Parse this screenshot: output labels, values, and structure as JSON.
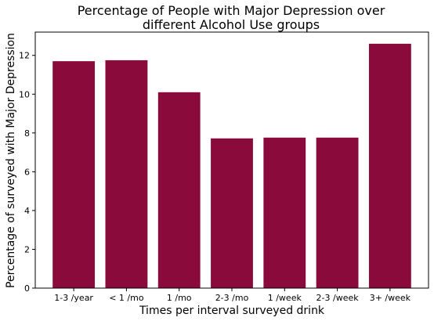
{
  "chart_data": {
    "type": "bar",
    "title_lines": [
      "Percentage of People with Major Depression over",
      "different Alcohol Use groups"
    ],
    "xlabel": "Times per interval surveyed drink",
    "ylabel": "Percentage of surveyed with Major Depression",
    "categories": [
      "1-3 /year",
      "< 1 /mo",
      "1 /mo",
      "2-3 /mo",
      "1 /week",
      "2-3 /week",
      "3+ /week"
    ],
    "values": [
      11.7,
      11.75,
      10.1,
      7.72,
      7.76,
      7.76,
      12.6
    ],
    "ylim": [
      0,
      13.2
    ],
    "yticks": [
      0,
      2,
      4,
      6,
      8,
      10,
      12
    ],
    "bar_color": "#8b0a3c",
    "grid": false,
    "legend": "none"
  }
}
